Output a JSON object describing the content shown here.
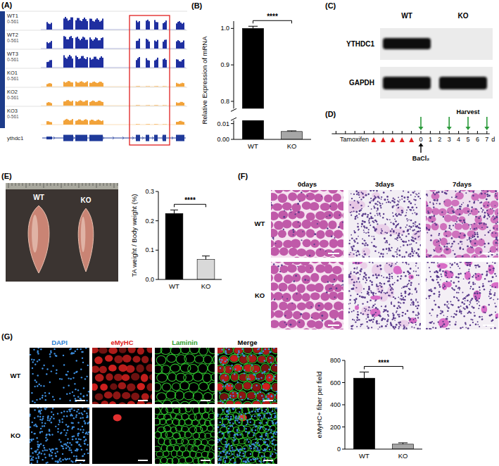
{
  "panel_labels": [
    "(A)",
    "(B)",
    "(C)",
    "(D)",
    "(E)",
    "(F)",
    "(G)"
  ],
  "genome_tracks": {
    "samples": [
      "WT1",
      "WT2",
      "WT3",
      "KO1",
      "KO2",
      "KO3"
    ],
    "range_label": "0-561",
    "gene": "ythdc1"
  },
  "western_blot": {
    "lanes": [
      "WT",
      "KO"
    ],
    "proteins": [
      "YTHDC1",
      "GAPDH"
    ]
  },
  "timeline": {
    "treatment": "Tamoxifen",
    "injury": "BaCl₂",
    "harvest": "Harvest",
    "unit": "d",
    "unlabeled_days": [
      -9,
      -8,
      -7,
      -6,
      -5,
      -4,
      -3,
      -2,
      -1
    ],
    "day_labels": [
      0,
      1,
      2,
      3,
      4,
      5,
      6,
      7
    ],
    "tamoxifen_days": [
      -5,
      -4,
      -3,
      -2,
      -1
    ],
    "harvest_days": [
      0,
      3,
      5,
      7
    ],
    "injury_day": 0
  },
  "muscle_photo": {
    "labels": [
      "WT",
      "KO"
    ]
  },
  "histology": {
    "columns": [
      "0days",
      "3days",
      "7days"
    ],
    "rows": [
      "WT",
      "KO"
    ]
  },
  "immunofluorescence": {
    "columns": [
      "DAPI",
      "eMyHC",
      "Laminin",
      "Merge"
    ],
    "rows": [
      "WT",
      "KO"
    ]
  },
  "chart_data": [
    {
      "type": "bar",
      "ylabel": "Relative Expression of mRNA",
      "categories": [
        "WT",
        "KO"
      ],
      "values": [
        1.0,
        0.005
      ],
      "errors": [
        0.006,
        0.0004
      ],
      "colors": [
        "#000000",
        "#a6a6a6"
      ],
      "ylim": [
        0,
        1.02
      ],
      "y_break": [
        0.012,
        0.78
      ],
      "yticks": [
        {
          "value": 0,
          "label": "0.00"
        },
        {
          "value": 0.01,
          "label": "0.01"
        },
        {
          "value": 0.8,
          "label": "0.8"
        },
        {
          "value": 0.9,
          "label": "0.9"
        },
        {
          "value": 1,
          "label": "1.0"
        }
      ],
      "annotation": "****"
    },
    {
      "type": "bar",
      "ylabel": "TA weight / Body weight (%)",
      "categories": [
        "WT",
        "KO"
      ],
      "values": [
        0.225,
        0.068
      ],
      "errors": [
        0.012,
        0.012
      ],
      "colors": [
        "#000000",
        "#d9d9d9"
      ],
      "ylim": [
        0,
        0.3
      ],
      "yticks": [
        {
          "value": 0,
          "label": "0.0"
        },
        {
          "value": 0.1,
          "label": "0.1"
        },
        {
          "value": 0.2,
          "label": "0.2"
        },
        {
          "value": 0.3,
          "label": "0.3"
        }
      ],
      "annotation": "****"
    },
    {
      "type": "bar",
      "ylabel": "eMyHC+ fiber per field",
      "categories": [
        "WT",
        "KO"
      ],
      "values": [
        640,
        45
      ],
      "errors": [
        55,
        12
      ],
      "colors": [
        "#000000",
        "#a6a6a6"
      ],
      "ylim": [
        0,
        800
      ],
      "yticks": [
        0,
        200,
        400,
        600,
        800
      ],
      "annotation": "****"
    }
  ]
}
